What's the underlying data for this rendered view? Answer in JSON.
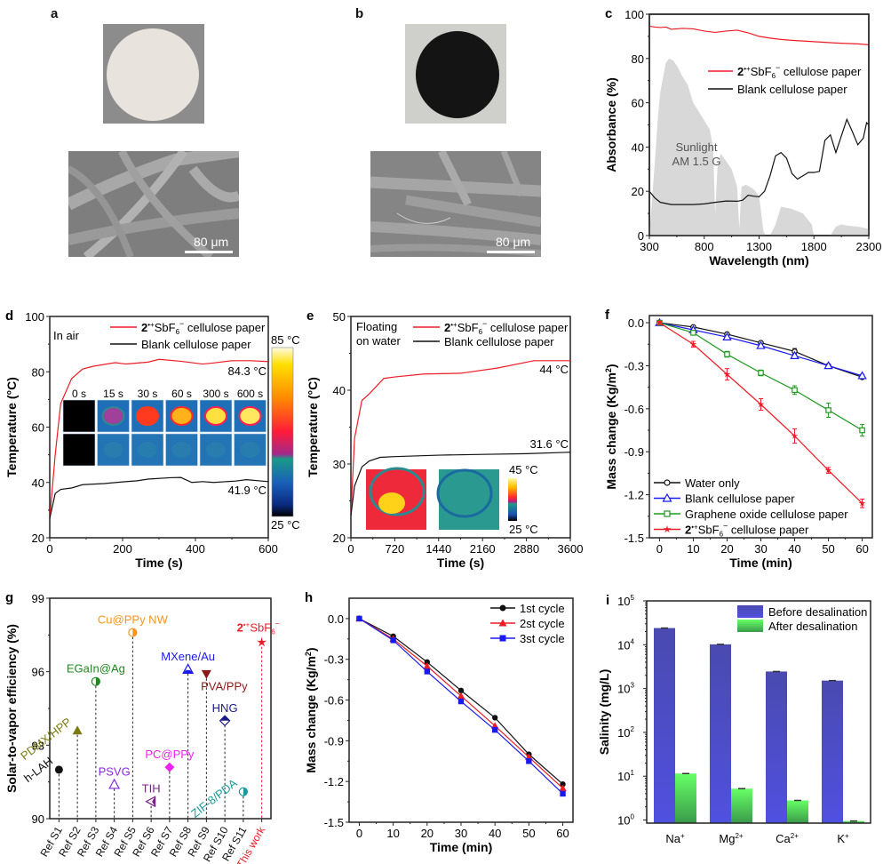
{
  "panels": {
    "a": {
      "label": "a",
      "scale_bar": "80 μm",
      "photo": "white-cellulose-disc",
      "sem": "blank-cellulose-fibers"
    },
    "b": {
      "label": "b",
      "scale_bar": "80 μm",
      "photo": "black-coated-disc",
      "sem": "coated-cellulose-fibers"
    }
  },
  "colors": {
    "red": "#ee1c25",
    "black": "#111111",
    "blue": "#1a1aee",
    "green": "#1e9a1e",
    "sun": "#d8d8d8",
    "bar_before": "#4d4dd2",
    "bar_after": "#5cdb5c"
  },
  "chart_data": [
    {
      "id": "c",
      "label": "c",
      "type": "line",
      "xlabel": "Wavelength (nm)",
      "ylabel": "Absorbance (%)",
      "xlim": [
        300,
        2300
      ],
      "ylim": [
        0,
        100
      ],
      "xticks": [
        300,
        800,
        1300,
        1800,
        2300
      ],
      "yticks": [
        0,
        20,
        40,
        60,
        80,
        100
      ],
      "annotation": [
        "Sunlight",
        "AM 1.5 G"
      ],
      "legend": [
        {
          "name": "2•+SbF6− cellulose paper",
          "color": "#ee1c25"
        },
        {
          "name": "Blank cellulose paper",
          "color": "#111111"
        }
      ],
      "series": [
        {
          "name": "2•+SbF6− cellulose paper",
          "color": "#ee1c25",
          "x": [
            300,
            350,
            400,
            450,
            500,
            600,
            700,
            800,
            900,
            1000,
            1100,
            1200,
            1300,
            1400,
            1500,
            1600,
            1800,
            2000,
            2200,
            2300
          ],
          "y": [
            94.6,
            94.2,
            94.0,
            94.2,
            93.2,
            93.6,
            93.4,
            92.4,
            91.8,
            92.4,
            92.8,
            91.6,
            90.0,
            89.2,
            88.6,
            88.2,
            87.6,
            87.0,
            86.6,
            86.2
          ]
        },
        {
          "name": "Blank cellulose paper",
          "color": "#111111",
          "x": [
            300,
            350,
            400,
            500,
            600,
            700,
            800,
            900,
            1000,
            1100,
            1150,
            1200,
            1250,
            1300,
            1350,
            1400,
            1450,
            1500,
            1550,
            1600,
            1650,
            1700,
            1750,
            1800,
            1850,
            1900,
            1950,
            2000,
            2050,
            2100,
            2150,
            2200,
            2250,
            2280,
            2300
          ],
          "y": [
            20,
            17,
            15,
            14,
            14,
            14,
            14.3,
            15,
            15.6,
            15.5,
            16,
            18.2,
            17.8,
            17.5,
            20,
            27,
            36,
            37.5,
            35,
            28,
            25.5,
            27,
            28.5,
            28.5,
            29,
            43,
            45.5,
            37.5,
            45,
            52.5,
            47,
            41,
            44,
            51,
            50
          ]
        },
        {
          "name": "Sunlight AM 1.5 G",
          "color": "#d8d8d8",
          "fill": true,
          "x": [
            300,
            330,
            360,
            380,
            400,
            450,
            480,
            520,
            560,
            600,
            650,
            700,
            750,
            800,
            850,
            880,
            900,
            920,
            950,
            980,
            1050,
            1100,
            1120,
            1140,
            1180,
            1250,
            1300,
            1340,
            1360,
            1400,
            1450,
            1500,
            1600,
            1700,
            1780,
            1800,
            1950,
            2000,
            2050,
            2100,
            2200,
            2300
          ],
          "y": [
            0,
            20,
            40,
            55,
            65,
            78,
            80,
            79,
            76,
            72,
            68,
            60,
            56,
            52,
            48,
            40,
            10,
            30,
            37,
            35,
            30,
            22,
            3,
            22,
            23,
            21,
            18,
            2,
            0,
            0,
            5,
            13,
            12,
            10,
            5,
            0,
            0,
            4,
            5,
            4.5,
            4,
            3
          ]
        }
      ]
    },
    {
      "id": "d",
      "label": "d",
      "type": "line",
      "xlabel": "Time (s)",
      "ylabel": "Temperature (°C)",
      "xlim": [
        0,
        600
      ],
      "ylim": [
        20,
        100
      ],
      "xticks": [
        0,
        200,
        400,
        600
      ],
      "yticks": [
        20,
        40,
        60,
        80,
        100
      ],
      "annotation_top_left": "In air",
      "end_labels": [
        "84.3 °C",
        "41.9 °C"
      ],
      "inset": {
        "times": [
          "0 s",
          "15 s",
          "30 s",
          "60 s",
          "300 s",
          "600 s"
        ],
        "colorbar_max": "85 °C",
        "colorbar_min": "25 °C"
      },
      "legend": [
        {
          "name": "2•+SbF6− cellulose paper",
          "color": "#ee1c25"
        },
        {
          "name": "Blank cellulose paper",
          "color": "#111111"
        }
      ],
      "series": [
        {
          "name": "2•+SbF6− cellulose paper",
          "color": "#ee1c25",
          "x": [
            0,
            15,
            30,
            60,
            90,
            120,
            180,
            210,
            270,
            300,
            360,
            420,
            450,
            500,
            550,
            600
          ],
          "y": [
            27,
            50,
            68.5,
            77.5,
            81,
            82,
            83.3,
            82.8,
            83.5,
            84.5,
            83.8,
            82.8,
            83.2,
            84,
            84,
            83.7
          ]
        },
        {
          "name": "Blank cellulose paper",
          "color": "#111111",
          "x": [
            0,
            15,
            30,
            60,
            90,
            150,
            200,
            240,
            270,
            330,
            360,
            390,
            420,
            450,
            510,
            540,
            600
          ],
          "y": [
            27,
            36,
            37.5,
            38,
            39.2,
            39.6,
            40.2,
            40.6,
            41.2,
            41.7,
            41.8,
            40,
            40.3,
            40,
            40.5,
            41,
            40.3
          ]
        }
      ]
    },
    {
      "id": "e",
      "label": "e",
      "type": "line",
      "xlabel": "Time (s)",
      "ylabel": "Temperature (°C)",
      "xlim": [
        0,
        3600
      ],
      "ylim": [
        20,
        50
      ],
      "xticks": [
        0,
        720,
        1440,
        2160,
        2880,
        3600
      ],
      "yticks": [
        20,
        30,
        40,
        50
      ],
      "annotation_top_left": [
        "Floating",
        "on water"
      ],
      "end_labels": [
        "44 °C",
        "31.6 °C"
      ],
      "inset": {
        "colorbar_max": "45 °C",
        "colorbar_min": "25 °C"
      },
      "legend": [
        {
          "name": "2•+SbF6− cellulose paper",
          "color": "#ee1c25"
        },
        {
          "name": "Blank cellulose paper",
          "color": "#111111"
        }
      ],
      "series": [
        {
          "name": "2•+SbF6− cellulose paper",
          "color": "#ee1c25",
          "x": [
            0,
            60,
            180,
            300,
            540,
            720,
            1200,
            1800,
            2400,
            3000,
            3600
          ],
          "y": [
            23,
            33.5,
            38.6,
            39.5,
            41.6,
            41.8,
            42.2,
            42.3,
            43,
            44,
            44
          ]
        },
        {
          "name": "Blank cellulose paper",
          "color": "#111111",
          "x": [
            0,
            60,
            180,
            300,
            480,
            720,
            1440,
            2160,
            2880,
            3600
          ],
          "y": [
            23,
            27,
            29.6,
            30.4,
            30.9,
            31,
            31.2,
            31.3,
            31.4,
            31.6
          ]
        }
      ]
    },
    {
      "id": "f",
      "label": "f",
      "type": "line",
      "xlabel": "Time (min)",
      "ylabel": "Mass change (Kg/m²)",
      "xlim": [
        -3,
        63
      ],
      "ylim": [
        -1.5,
        0.05
      ],
      "xticks": [
        0,
        10,
        20,
        30,
        40,
        50,
        60
      ],
      "yticks": [
        0.0,
        -0.3,
        -0.6,
        -0.9,
        -1.2,
        -1.5
      ],
      "legend_position": "bottom-left",
      "x": [
        0,
        10,
        20,
        30,
        40,
        50,
        60
      ],
      "series": [
        {
          "name": "Water only",
          "color": "#111111",
          "marker": "circle-open",
          "values": [
            0,
            -0.03,
            -0.08,
            -0.14,
            -0.2,
            -0.3,
            -0.38
          ],
          "err": [
            0.01,
            0.01,
            0.01,
            0.01,
            0.02,
            0.01,
            0.01
          ]
        },
        {
          "name": "Blank cellulose paper",
          "color": "#1a1aee",
          "marker": "triangle-open",
          "values": [
            0,
            -0.05,
            -0.1,
            -0.16,
            -0.23,
            -0.3,
            -0.37
          ],
          "err": [
            0.01,
            0.01,
            0.01,
            0.01,
            0.01,
            0.01,
            0.01
          ]
        },
        {
          "name": "Graphene oxide cellulose paper",
          "color": "#1e9a1e",
          "marker": "square-open",
          "values": [
            0,
            -0.07,
            -0.22,
            -0.35,
            -0.47,
            -0.61,
            -0.75
          ],
          "err": [
            0.01,
            0.01,
            0.02,
            0.02,
            0.03,
            0.05,
            0.04
          ]
        },
        {
          "name": "2•+SbF6− cellulose paper",
          "color": "#ee1c25",
          "marker": "star",
          "values": [
            0,
            -0.15,
            -0.36,
            -0.57,
            -0.79,
            -1.03,
            -1.26
          ],
          "err": [
            0.01,
            0.02,
            0.04,
            0.04,
            0.05,
            0.02,
            0.03
          ]
        }
      ]
    },
    {
      "id": "g",
      "label": "g",
      "type": "scatter",
      "xlabel": "",
      "ylabel": "Solar-to-vapor efficiency (%)",
      "ylim": [
        90,
        99
      ],
      "yticks": [
        90,
        93,
        96,
        99
      ],
      "categories": [
        "Ref S1",
        "Ref S2",
        "Ref S3",
        "Ref S4",
        "Ref S5",
        "Ref S6",
        "Ref S7",
        "Ref S8",
        "Ref S9",
        "Ref S10",
        "Ref S11",
        "This work"
      ],
      "points": [
        {
          "cat": "Ref S1",
          "value": 92.0,
          "name": "h-LAH",
          "color": "#111111",
          "marker": "circle",
          "label_pos": "rotated-left"
        },
        {
          "cat": "Ref S2",
          "value": 93.6,
          "name": "PDMX/HPP",
          "color": "#7a7a10",
          "marker": "triangle",
          "label_pos": "rotated-left"
        },
        {
          "cat": "Ref S3",
          "value": 95.6,
          "name": "EGaIn@Ag",
          "color": "#1e8a1e",
          "marker": "circle-half",
          "label_pos": "above"
        },
        {
          "cat": "Ref S4",
          "value": 91.4,
          "name": "PSVG",
          "color": "#8a2be2",
          "marker": "triangle-open",
          "label_pos": "above"
        },
        {
          "cat": "Ref S5",
          "value": 97.6,
          "name": "Cu@PPy NW",
          "color": "#f7941d",
          "marker": "circle-half",
          "label_pos": "above"
        },
        {
          "cat": "Ref S6",
          "value": 90.7,
          "name": "TIH",
          "color": "#7b1f8a",
          "marker": "triangle-left",
          "label_pos": "above"
        },
        {
          "cat": "Ref S7",
          "value": 92.1,
          "name": "PC@PPy",
          "color": "#ee22ee",
          "marker": "diamond",
          "label_pos": "above"
        },
        {
          "cat": "Ref S8",
          "value": 96.1,
          "name": "MXene/Au",
          "color": "#1a1aee",
          "marker": "triangle-half",
          "label_pos": "above"
        },
        {
          "cat": "Ref S9",
          "value": 95.9,
          "name": "PVA/PPy",
          "color": "#8b1a1a",
          "marker": "triangle-down",
          "label_pos": "below-right"
        },
        {
          "cat": "Ref S10",
          "value": 94.0,
          "name": "HNG",
          "color": "#1a1a8a",
          "marker": "diamond-half",
          "label_pos": "above"
        },
        {
          "cat": "Ref S11",
          "value": 91.1,
          "name": "ZIF-8/PDA",
          "color": "#1a9a9a",
          "marker": "circle-half",
          "label_pos": "rotated-left"
        },
        {
          "cat": "This work",
          "value": 97.2,
          "name": "2•+SbF6−",
          "color": "#ee1c25",
          "marker": "star",
          "label_pos": "above"
        }
      ]
    },
    {
      "id": "h",
      "label": "h",
      "type": "line",
      "xlabel": "Time (min)",
      "ylabel": "Mass change (Kg/m²)",
      "xlim": [
        -3,
        63
      ],
      "ylim": [
        -1.5,
        0.15
      ],
      "xticks": [
        0,
        10,
        20,
        30,
        40,
        50,
        60
      ],
      "yticks": [
        0.0,
        -0.3,
        -0.6,
        -0.9,
        -1.2,
        -1.5
      ],
      "legend_position": "top-right",
      "x": [
        0,
        10,
        20,
        30,
        40,
        50,
        60
      ],
      "series": [
        {
          "name": "1st cycle",
          "color": "#111111",
          "marker": "circle",
          "values": [
            0,
            -0.13,
            -0.32,
            -0.53,
            -0.73,
            -1.0,
            -1.22
          ]
        },
        {
          "name": "2st cycle",
          "color": "#ee1c25",
          "marker": "triangle",
          "values": [
            0,
            -0.15,
            -0.35,
            -0.57,
            -0.79,
            -1.02,
            -1.25
          ]
        },
        {
          "name": "3st cycle",
          "color": "#1a1aee",
          "marker": "square",
          "values": [
            0,
            -0.16,
            -0.39,
            -0.61,
            -0.82,
            -1.05,
            -1.29
          ]
        }
      ]
    },
    {
      "id": "i",
      "label": "i",
      "type": "bar",
      "xlabel": "",
      "ylabel": "Salinity (mg/L)",
      "yscale": "log",
      "ylim": [
        0.85,
        100000
      ],
      "ytick_labels": [
        {
          "base": "10",
          "exp": "0",
          "v": 1
        },
        {
          "base": "10",
          "exp": "1",
          "v": 10
        },
        {
          "base": "10",
          "exp": "2",
          "v": 100
        },
        {
          "base": "10",
          "exp": "3",
          "v": 1000
        },
        {
          "base": "10",
          "exp": "4",
          "v": 10000
        },
        {
          "base": "10",
          "exp": "5",
          "v": 100000
        }
      ],
      "categories": [
        {
          "base": "Na",
          "sup": "+"
        },
        {
          "base": "Mg",
          "sup": "2+"
        },
        {
          "base": "Ca",
          "sup": "2+"
        },
        {
          "base": "K",
          "sup": "+"
        }
      ],
      "legend_position": "top-right",
      "series": [
        {
          "name": "Before desalination",
          "color": "#4d4dd2",
          "values": [
            24000,
            10200,
            2450,
            1520
          ]
        },
        {
          "name": "After desalination",
          "color": "#5cdb5c",
          "values": [
            11.5,
            5.2,
            2.8,
            0.95
          ]
        }
      ]
    }
  ]
}
